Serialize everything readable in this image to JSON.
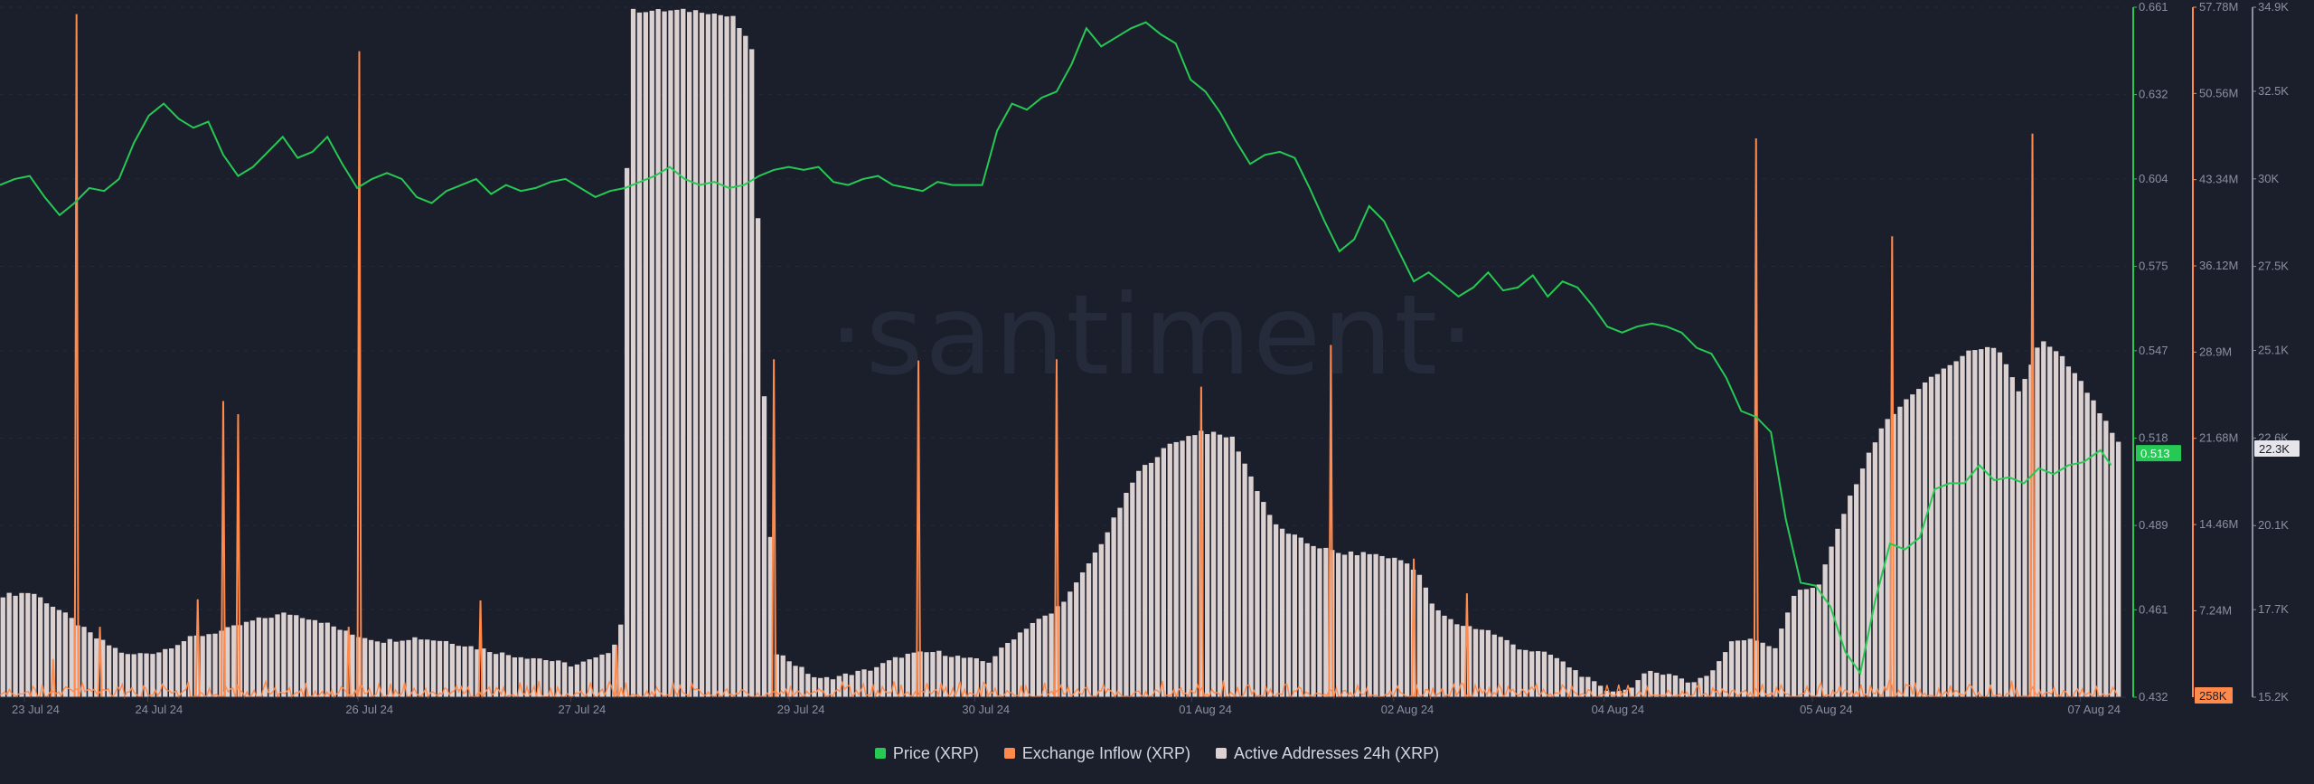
{
  "watermark": "·santiment·",
  "legend": [
    {
      "label": "Price (XRP)",
      "color": "#26c953"
    },
    {
      "label": "Exchange Inflow (XRP)",
      "color": "#ff8a4c"
    },
    {
      "label": "Active Addresses 24h (XRP)",
      "color": "#dcd1d1"
    }
  ],
  "chart_data": {
    "type": "line",
    "x_range": [
      "2024-07-23",
      "2024-08-07"
    ],
    "x_ticks": [
      "23 Jul 24",
      "24 Jul 24",
      "26 Jul 24",
      "27 Jul 24",
      "29 Jul 24",
      "30 Jul 24",
      "01 Aug 24",
      "02 Aug 24",
      "04 Aug 24",
      "05 Aug 24",
      "07 Aug 24"
    ],
    "axes": {
      "price": {
        "ticks": [
          "0.661",
          "0.632",
          "0.604",
          "0.575",
          "0.547",
          "0.518",
          "0.489",
          "0.461",
          "0.432"
        ],
        "range": [
          0.432,
          0.661
        ],
        "current": "0.513"
      },
      "inflow": {
        "ticks": [
          "57.78M",
          "50.56M",
          "43.34M",
          "36.12M",
          "28.9M",
          "21.68M",
          "14.46M",
          "7.24M"
        ],
        "range": [
          0,
          57.78
        ],
        "unit": "M",
        "current": "258K"
      },
      "addresses": {
        "ticks": [
          "34.9K",
          "32.5K",
          "30K",
          "27.5K",
          "25.1K",
          "22.6K",
          "20.1K",
          "17.7K",
          "15.2K"
        ],
        "range": [
          15.2,
          34.9
        ],
        "unit": "K",
        "current": "22.3K"
      }
    },
    "grid": true,
    "series": [
      {
        "name": "Price (XRP)",
        "type": "line",
        "axis": "price",
        "color": "#26c953",
        "points": [
          [
            0.0,
            0.602
          ],
          [
            0.7,
            0.604
          ],
          [
            1.4,
            0.605
          ],
          [
            2.1,
            0.598
          ],
          [
            2.8,
            0.592
          ],
          [
            3.5,
            0.596
          ],
          [
            4.2,
            0.601
          ],
          [
            4.9,
            0.6
          ],
          [
            5.6,
            0.604
          ],
          [
            6.3,
            0.616
          ],
          [
            7.0,
            0.625
          ],
          [
            7.7,
            0.629
          ],
          [
            8.4,
            0.624
          ],
          [
            9.1,
            0.621
          ],
          [
            9.8,
            0.623
          ],
          [
            10.5,
            0.612
          ],
          [
            11.2,
            0.605
          ],
          [
            11.9,
            0.608
          ],
          [
            12.6,
            0.613
          ],
          [
            13.3,
            0.618
          ],
          [
            14.0,
            0.611
          ],
          [
            14.7,
            0.613
          ],
          [
            15.4,
            0.618
          ],
          [
            16.1,
            0.609
          ],
          [
            16.8,
            0.601
          ],
          [
            17.5,
            0.604
          ],
          [
            18.2,
            0.606
          ],
          [
            18.9,
            0.604
          ],
          [
            19.6,
            0.598
          ],
          [
            20.3,
            0.596
          ],
          [
            21.0,
            0.6
          ],
          [
            21.7,
            0.602
          ],
          [
            22.4,
            0.604
          ],
          [
            23.1,
            0.599
          ],
          [
            23.8,
            0.602
          ],
          [
            24.5,
            0.6
          ],
          [
            25.2,
            0.601
          ],
          [
            25.9,
            0.603
          ],
          [
            26.6,
            0.604
          ],
          [
            27.3,
            0.601
          ],
          [
            28.0,
            0.598
          ],
          [
            28.7,
            0.6
          ],
          [
            29.4,
            0.601
          ],
          [
            30.1,
            0.603
          ],
          [
            30.8,
            0.605
          ],
          [
            31.5,
            0.608
          ],
          [
            32.2,
            0.604
          ],
          [
            32.9,
            0.602
          ],
          [
            33.6,
            0.603
          ],
          [
            34.3,
            0.601
          ],
          [
            35.0,
            0.602
          ],
          [
            35.7,
            0.605
          ],
          [
            36.4,
            0.607
          ],
          [
            37.1,
            0.608
          ],
          [
            37.8,
            0.607
          ],
          [
            38.5,
            0.608
          ],
          [
            39.2,
            0.603
          ],
          [
            39.9,
            0.602
          ],
          [
            40.6,
            0.604
          ],
          [
            41.3,
            0.605
          ],
          [
            42.0,
            0.602
          ],
          [
            42.7,
            0.601
          ],
          [
            43.4,
            0.6
          ],
          [
            44.1,
            0.603
          ],
          [
            44.8,
            0.602
          ],
          [
            45.5,
            0.602
          ],
          [
            46.2,
            0.602
          ],
          [
            46.9,
            0.62
          ],
          [
            47.6,
            0.629
          ],
          [
            48.3,
            0.627
          ],
          [
            49.0,
            0.631
          ],
          [
            49.7,
            0.633
          ],
          [
            50.4,
            0.642
          ],
          [
            51.1,
            0.654
          ],
          [
            51.8,
            0.648
          ],
          [
            52.5,
            0.651
          ],
          [
            53.2,
            0.654
          ],
          [
            53.9,
            0.656
          ],
          [
            54.6,
            0.652
          ],
          [
            55.3,
            0.649
          ],
          [
            56.0,
            0.637
          ],
          [
            56.7,
            0.633
          ],
          [
            57.4,
            0.626
          ],
          [
            58.1,
            0.617
          ],
          [
            58.8,
            0.609
          ],
          [
            59.5,
            0.612
          ],
          [
            60.2,
            0.613
          ],
          [
            60.9,
            0.611
          ],
          [
            61.6,
            0.601
          ],
          [
            62.3,
            0.59
          ],
          [
            63.0,
            0.58
          ],
          [
            63.7,
            0.584
          ],
          [
            64.4,
            0.595
          ],
          [
            65.1,
            0.59
          ],
          [
            65.8,
            0.58
          ],
          [
            66.5,
            0.57
          ],
          [
            67.2,
            0.573
          ],
          [
            67.9,
            0.569
          ],
          [
            68.6,
            0.565
          ],
          [
            69.3,
            0.568
          ],
          [
            70.0,
            0.573
          ],
          [
            70.7,
            0.567
          ],
          [
            71.4,
            0.568
          ],
          [
            72.1,
            0.572
          ],
          [
            72.8,
            0.565
          ],
          [
            73.5,
            0.57
          ],
          [
            74.2,
            0.568
          ],
          [
            74.9,
            0.562
          ],
          [
            75.6,
            0.555
          ],
          [
            76.3,
            0.553
          ],
          [
            77.0,
            0.555
          ],
          [
            77.7,
            0.556
          ],
          [
            78.4,
            0.555
          ],
          [
            79.1,
            0.553
          ],
          [
            79.8,
            0.548
          ],
          [
            80.5,
            0.546
          ],
          [
            81.2,
            0.538
          ],
          [
            81.9,
            0.527
          ],
          [
            82.6,
            0.525
          ],
          [
            83.3,
            0.52
          ],
          [
            84.0,
            0.491
          ],
          [
            84.7,
            0.47
          ],
          [
            85.4,
            0.469
          ],
          [
            86.1,
            0.462
          ],
          [
            86.8,
            0.447
          ],
          [
            87.5,
            0.44
          ],
          [
            88.2,
            0.464
          ],
          [
            88.9,
            0.483
          ],
          [
            89.6,
            0.481
          ],
          [
            90.3,
            0.485
          ],
          [
            91.0,
            0.501
          ],
          [
            91.7,
            0.503
          ],
          [
            92.4,
            0.503
          ],
          [
            93.1,
            0.509
          ],
          [
            93.8,
            0.504
          ],
          [
            94.5,
            0.505
          ],
          [
            95.2,
            0.503
          ],
          [
            95.9,
            0.508
          ],
          [
            96.6,
            0.506
          ],
          [
            97.3,
            0.509
          ],
          [
            98.0,
            0.51
          ],
          [
            98.8,
            0.514
          ],
          [
            99.3,
            0.509
          ]
        ]
      },
      {
        "name": "Active Addresses 24h (XRP)",
        "type": "bar",
        "axis": "addresses",
        "color": "#dcd1d1",
        "points": [
          [
            0.0,
            18.1
          ],
          [
            1.5,
            18.2
          ],
          [
            3.0,
            17.6
          ],
          [
            4.5,
            16.9
          ],
          [
            6.0,
            16.4
          ],
          [
            7.5,
            16.5
          ],
          [
            9.0,
            16.9
          ],
          [
            10.5,
            17.1
          ],
          [
            12.0,
            17.4
          ],
          [
            13.5,
            17.6
          ],
          [
            15.0,
            17.4
          ],
          [
            16.5,
            17.0
          ],
          [
            18.0,
            16.8
          ],
          [
            19.5,
            16.9
          ],
          [
            21.0,
            16.8
          ],
          [
            22.5,
            16.6
          ],
          [
            24.0,
            16.4
          ],
          [
            25.5,
            16.3
          ],
          [
            27.0,
            16.1
          ],
          [
            28.5,
            16.4
          ],
          [
            29.2,
            17.0
          ],
          [
            29.6,
            34.8
          ],
          [
            31.0,
            34.8
          ],
          [
            33.0,
            34.8
          ],
          [
            34.5,
            34.6
          ],
          [
            35.4,
            33.7
          ],
          [
            35.9,
            24.5
          ],
          [
            36.5,
            16.5
          ],
          [
            37.5,
            16.1
          ],
          [
            38.5,
            15.7
          ],
          [
            39.5,
            15.8
          ],
          [
            41.0,
            16.0
          ],
          [
            42.5,
            16.4
          ],
          [
            44.0,
            16.5
          ],
          [
            45.5,
            16.3
          ],
          [
            46.5,
            16.2
          ],
          [
            47.5,
            16.8
          ],
          [
            48.5,
            17.3
          ],
          [
            49.5,
            17.6
          ],
          [
            50.5,
            18.3
          ],
          [
            52.0,
            19.8
          ],
          [
            53.5,
            21.6
          ],
          [
            55.0,
            22.4
          ],
          [
            56.5,
            22.8
          ],
          [
            58.0,
            22.6
          ],
          [
            59.0,
            21.3
          ],
          [
            60.0,
            20.1
          ],
          [
            61.5,
            19.6
          ],
          [
            63.0,
            19.3
          ],
          [
            64.5,
            19.3
          ],
          [
            66.0,
            19.1
          ],
          [
            66.7,
            18.8
          ],
          [
            67.5,
            17.7
          ],
          [
            68.5,
            17.3
          ],
          [
            70.0,
            17.1
          ],
          [
            71.5,
            16.6
          ],
          [
            73.0,
            16.4
          ],
          [
            74.5,
            15.8
          ],
          [
            75.5,
            15.4
          ],
          [
            76.5,
            15.4
          ],
          [
            77.5,
            15.9
          ],
          [
            78.5,
            15.9
          ],
          [
            79.5,
            15.6
          ],
          [
            80.5,
            15.9
          ],
          [
            81.5,
            16.8
          ],
          [
            82.5,
            16.9
          ],
          [
            83.5,
            16.6
          ],
          [
            84.5,
            18.3
          ],
          [
            85.5,
            18.3
          ],
          [
            86.5,
            20.1
          ],
          [
            87.5,
            21.6
          ],
          [
            88.5,
            22.9
          ],
          [
            90.0,
            23.9
          ],
          [
            91.5,
            24.6
          ],
          [
            93.0,
            25.2
          ],
          [
            94.0,
            25.1
          ],
          [
            95.0,
            23.9
          ],
          [
            96.0,
            25.4
          ],
          [
            97.0,
            24.9
          ],
          [
            98.0,
            24.1
          ],
          [
            99.0,
            23.1
          ],
          [
            99.8,
            22.3
          ]
        ]
      },
      {
        "name": "Exchange Inflow (XRP)",
        "type": "line",
        "axis": "inflow",
        "color": "#ff8a4c",
        "spikes": [
          [
            2.5,
            3.2
          ],
          [
            3.6,
            57.2
          ],
          [
            4.7,
            5.9
          ],
          [
            9.3,
            8.2
          ],
          [
            10.5,
            24.8
          ],
          [
            11.2,
            23.7
          ],
          [
            16.4,
            5.9
          ],
          [
            16.9,
            54.1
          ],
          [
            22.6,
            8.1
          ],
          [
            29.0,
            4.3
          ],
          [
            36.4,
            28.3
          ],
          [
            43.2,
            28.2
          ],
          [
            49.7,
            28.3
          ],
          [
            56.5,
            26.0
          ],
          [
            62.6,
            29.5
          ],
          [
            66.5,
            11.6
          ],
          [
            69.0,
            8.7
          ],
          [
            82.6,
            46.8
          ],
          [
            89.0,
            38.6
          ],
          [
            95.6,
            47.2
          ]
        ],
        "baseline_max": 1.5
      }
    ]
  }
}
